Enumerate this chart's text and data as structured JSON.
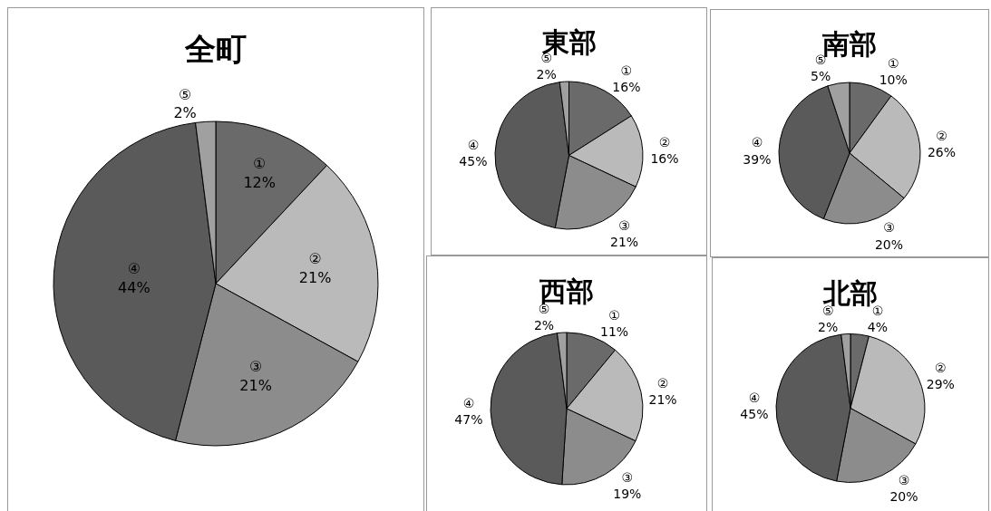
{
  "chart_data": [
    {
      "type": "pie",
      "title": "全町",
      "categories": [
        "①",
        "②",
        "③",
        "④",
        "⑤"
      ],
      "values": [
        12,
        21,
        21,
        44,
        2
      ],
      "value_labels": [
        "12%",
        "21%",
        "21%",
        "44%",
        "2%"
      ],
      "colors": [
        "#6a6a6a",
        "#bababa",
        "#8c8c8c",
        "#5a5a5a",
        "#a0a0a0"
      ]
    },
    {
      "type": "pie",
      "title": "東部",
      "categories": [
        "①",
        "②",
        "③",
        "④",
        "⑤"
      ],
      "values": [
        16,
        16,
        21,
        45,
        2
      ],
      "value_labels": [
        "16%",
        "16%",
        "21%",
        "45%",
        "2%"
      ],
      "colors": [
        "#6a6a6a",
        "#bababa",
        "#8c8c8c",
        "#5a5a5a",
        "#a0a0a0"
      ]
    },
    {
      "type": "pie",
      "title": "南部",
      "categories": [
        "①",
        "②",
        "③",
        "④",
        "⑤"
      ],
      "values": [
        10,
        26,
        20,
        39,
        5
      ],
      "value_labels": [
        "10%",
        "26%",
        "20%",
        "39%",
        "5%"
      ],
      "colors": [
        "#6a6a6a",
        "#bababa",
        "#8c8c8c",
        "#5a5a5a",
        "#a0a0a0"
      ]
    },
    {
      "type": "pie",
      "title": "西部",
      "categories": [
        "①",
        "②",
        "③",
        "④",
        "⑤"
      ],
      "values": [
        11,
        21,
        19,
        47,
        2
      ],
      "value_labels": [
        "11%",
        "21%",
        "19%",
        "47%",
        "2%"
      ],
      "colors": [
        "#6a6a6a",
        "#bababa",
        "#8c8c8c",
        "#5a5a5a",
        "#a0a0a0"
      ]
    },
    {
      "type": "pie",
      "title": "北部",
      "categories": [
        "①",
        "②",
        "③",
        "④",
        "⑤"
      ],
      "values": [
        4,
        29,
        20,
        45,
        2
      ],
      "value_labels": [
        "4%",
        "29%",
        "20%",
        "45%",
        "2%"
      ],
      "colors": [
        "#6a6a6a",
        "#bababa",
        "#8c8c8c",
        "#5a5a5a",
        "#a0a0a0"
      ]
    }
  ]
}
